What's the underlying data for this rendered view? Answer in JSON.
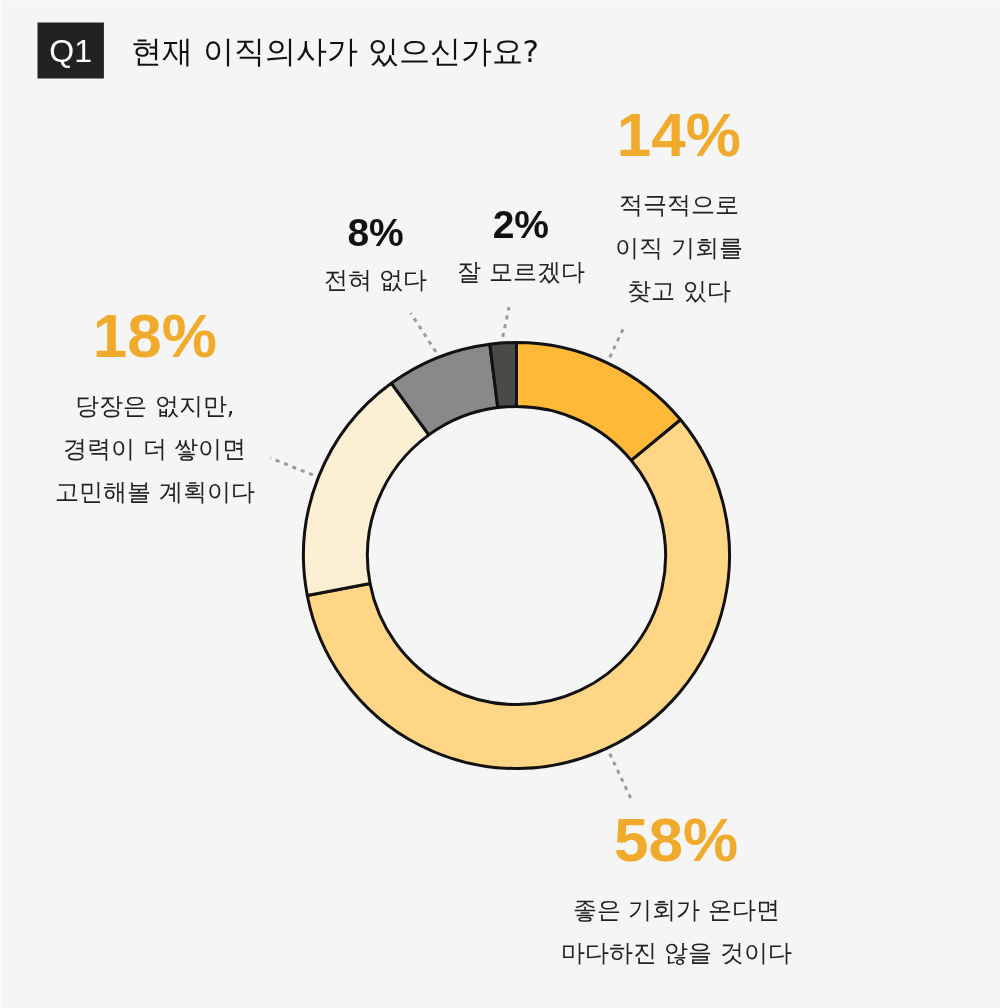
{
  "chart_data": {
    "type": "donut",
    "title": "현재 이직의사가 있으신가요?",
    "annotations": [
      "Q1"
    ],
    "categories": [
      "적극적으로\n이직 기회를\n찾고 있다",
      "좋은 기회가 온다면\n마다하진 않을 것이다",
      "당장은 없지만,\n경력이 더 쌓이면\n고민해볼 계획이다",
      "전혀 없다",
      "잘 모르겠다"
    ],
    "values": [
      14,
      58,
      18,
      8,
      2
    ],
    "colors": [
      "#fdb937",
      "#fed685",
      "#fdefd4",
      "#898989",
      "#4a4a4a"
    ],
    "value_labels": [
      "14%",
      "58%",
      "18%",
      "8%",
      "2%"
    ]
  }
}
